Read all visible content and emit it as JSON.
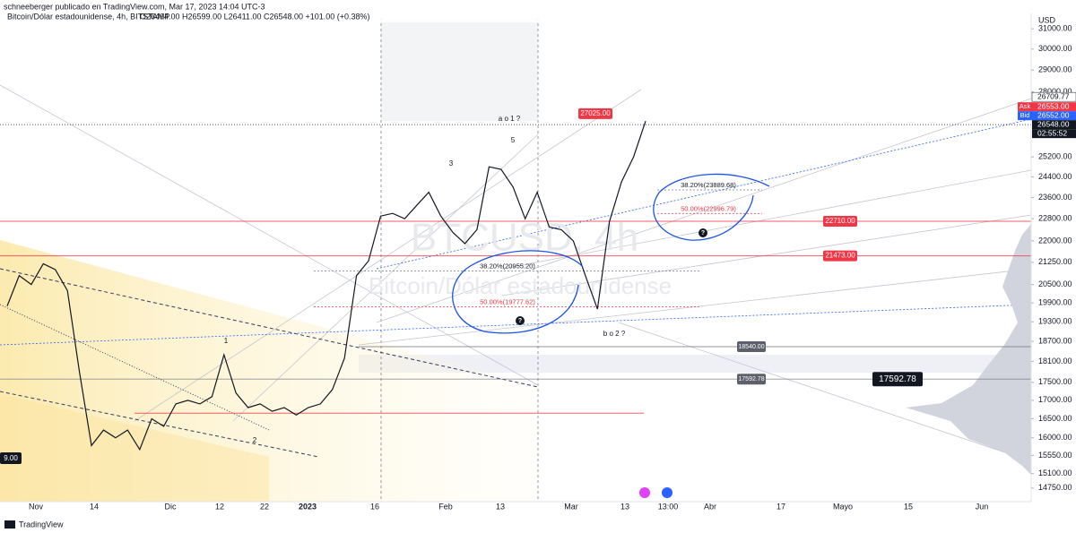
{
  "header": {
    "publisher": "schneeberger publicado en TradingView.com, Mar 17, 2023 14:04 UTC-3"
  },
  "chart_data": {
    "type": "line",
    "title": "Bitcoin/Dólar estadounidense, 4h, BITSTAMP",
    "ohlc": "O26464.00 H26599.00 L26411.00 C26548.00 +101.00 (+0.38%)",
    "watermark": "BTCUSD, 4h",
    "watermark_subtitle": "Bitcoin/Dólar estadounidense",
    "y_unit": "USD",
    "yscale": "log",
    "grid": false,
    "ylim": [
      14430,
      31550
    ],
    "yticks": [
      {
        "value": 31000,
        "label": "31000.00"
      },
      {
        "value": 30000,
        "label": "30000.00"
      },
      {
        "value": 29000,
        "label": "29000.00"
      },
      {
        "value": 28000,
        "label": "28000.00"
      },
      {
        "value": 25200,
        "label": "25200.00"
      },
      {
        "value": 24400,
        "label": "24400.00"
      },
      {
        "value": 23600,
        "label": "23600.00"
      },
      {
        "value": 22800,
        "label": "22800.00"
      },
      {
        "value": 22000,
        "label": "22000.00"
      },
      {
        "value": 21250,
        "label": "21250.00"
      },
      {
        "value": 20500,
        "label": "20500.00"
      },
      {
        "value": 19900,
        "label": "19900.00"
      },
      {
        "value": 19300,
        "label": "19300.00"
      },
      {
        "value": 18700,
        "label": "18700.00"
      },
      {
        "value": 18100,
        "label": "18100.00"
      },
      {
        "value": 17500,
        "label": "17500.00"
      },
      {
        "value": 17000,
        "label": "17000.00"
      },
      {
        "value": 16500,
        "label": "16500.00"
      },
      {
        "value": 16000,
        "label": "16000.00"
      },
      {
        "value": 15550,
        "label": "15550.00"
      },
      {
        "value": 15100,
        "label": "15100.00"
      },
      {
        "value": 14750,
        "label": "14750.00"
      }
    ],
    "x_axis_labels": [
      "Nov",
      "14",
      "Dic",
      "12",
      "22",
      "2023",
      "16",
      "Feb",
      "13",
      "Mar",
      "13",
      "13:00",
      "Abr",
      "17",
      "Mayo",
      "15",
      "Jun"
    ],
    "series": [
      {
        "name": "BTCUSD",
        "color": "#131722",
        "values": [
          19800,
          20800,
          20500,
          21200,
          21000,
          20300,
          17800,
          15800,
          16200,
          16000,
          16200,
          15700,
          16500,
          16300,
          16900,
          17000,
          16900,
          17100,
          18300,
          17200,
          16800,
          16900,
          16700,
          16800,
          16600,
          16800,
          16900,
          17300,
          18200,
          20800,
          21300,
          22900,
          23000,
          22800,
          23300,
          23800,
          22900,
          22300,
          21900,
          22400,
          24800,
          24700,
          24000,
          22800,
          23800,
          22500,
          22400,
          22000,
          20800,
          19700,
          22700,
          24200,
          25200,
          26700
        ]
      }
    ],
    "price_labels": [
      {
        "value": 26709.77,
        "label": "26709.77"
      },
      {
        "tag": "Ask",
        "value": 26553,
        "label": "26553.00"
      },
      {
        "tag": "Bid",
        "value": 26552,
        "label": "26552.00"
      },
      {
        "value": 26548,
        "label": "26548.00"
      }
    ],
    "countdown": "02:55:52",
    "levels": [
      {
        "value": 27025,
        "label": "27025.00",
        "color": "#f23645"
      },
      {
        "value": 22710,
        "label": "22710.00",
        "color": "#f23645"
      },
      {
        "value": 21473,
        "label": "21473.00",
        "color": "#f23645"
      },
      {
        "value": 18540,
        "label": "18540.00",
        "color": "#787b86"
      },
      {
        "value": 17592.78,
        "label": "17592.78",
        "color": "#787b86"
      },
      {
        "value": 16650,
        "color": "#f23645"
      }
    ],
    "fib": [
      {
        "value": 23889.68,
        "label": "38.20%(23889.68)",
        "color": "#787b86"
      },
      {
        "value": 22996.79,
        "label": "50.00%(22996.79)",
        "color": "#f23645"
      },
      {
        "value": 20955.2,
        "label": "38.20%(20955.20)",
        "color": "#787b86"
      },
      {
        "value": 19777.62,
        "label": "50.00%(19777.62)",
        "color": "#f23645"
      }
    ],
    "annotations": [
      "a o 1 ?",
      "5",
      "3",
      "b o 2 ?",
      "1",
      "2",
      "9.00",
      "?",
      "?"
    ]
  },
  "footer": {
    "logo": "TradingView"
  }
}
